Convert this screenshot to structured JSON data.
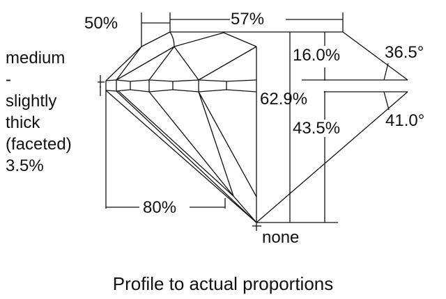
{
  "labels": {
    "crown_height_label": "50%",
    "table_label": "57%",
    "crown_pct": "16.0%",
    "crown_angle": "36.5°",
    "total_depth": "62.9%",
    "pavilion_depth": "43.5%",
    "pavilion_angle": "41.0°",
    "lower_half": "80%",
    "culet": "none",
    "girdle_lines": [
      "medium",
      "-",
      "slightly",
      "thick",
      "(faceted)",
      "3.5%"
    ]
  },
  "caption": "Profile to actual proportions",
  "colors": {
    "line": "#111111",
    "background": "#ffffff"
  }
}
